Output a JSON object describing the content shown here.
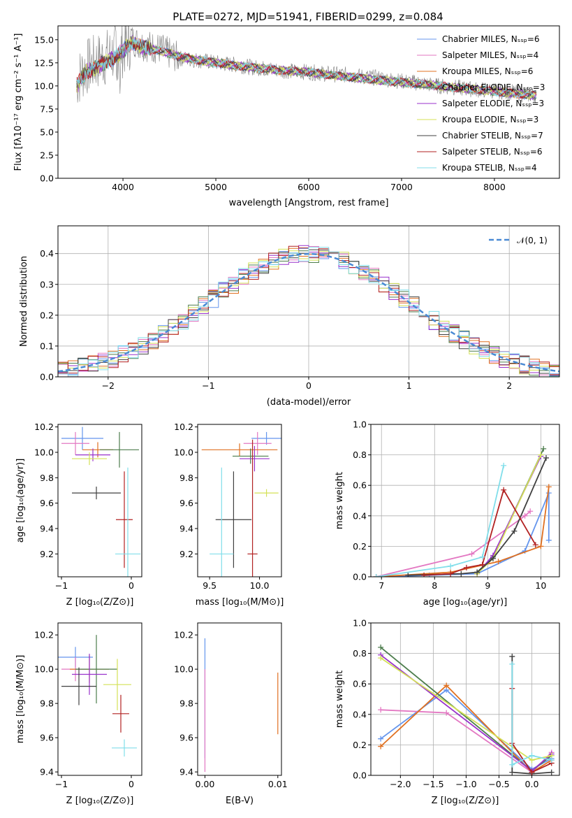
{
  "figure": {
    "title": "PLATE=0272, MJD=51941, FIBERID=0299, z=0.084"
  },
  "chart_data": [
    {
      "id": "spectrum",
      "type": "line",
      "xlabel": "wavelength [Angstrom, rest frame]",
      "ylabel": "Flux [fλ10⁻¹⁷ erg cm⁻² s⁻¹ A⁻¹]",
      "xlim": [
        3300,
        8700
      ],
      "ylim": [
        0,
        16.5
      ],
      "xticks": [
        4000,
        5000,
        6000,
        7000,
        8000
      ],
      "yticks": [
        0.0,
        2.5,
        5.0,
        7.5,
        10.0,
        12.5,
        15.0
      ],
      "legend_position": "top-right",
      "x": [
        3500,
        3600,
        3700,
        3800,
        3900,
        4000,
        4100,
        4200,
        4400,
        4600,
        4800,
        5000,
        5200,
        5400,
        5600,
        5800,
        6000,
        6200,
        6400,
        6600,
        6800,
        7000,
        7200,
        7400,
        7600,
        7800,
        8000,
        8200,
        8400
      ],
      "data_y": [
        10.5,
        12.0,
        12.5,
        13.0,
        13.5,
        14.0,
        15.0,
        14.5,
        14.0,
        13.0,
        12.8,
        12.5,
        12.3,
        12.0,
        11.8,
        11.6,
        11.5,
        11.3,
        11.2,
        11.0,
        10.8,
        10.5,
        10.3,
        10.0,
        9.8,
        9.6,
        9.5,
        9.3,
        9.0
      ],
      "model_y": [
        10.0,
        11.5,
        12.0,
        12.5,
        13.0,
        13.8,
        14.8,
        14.2,
        13.8,
        13.2,
        12.8,
        12.5,
        12.2,
        12.0,
        11.8,
        11.6,
        11.5,
        11.2,
        11.0,
        10.8,
        10.6,
        10.4,
        10.2,
        10.0,
        9.8,
        9.6,
        9.4,
        9.2,
        9.0
      ],
      "series": [
        {
          "name": "Chabrier MILES, N_SSP=6",
          "color": "#6495ED"
        },
        {
          "name": "Salpeter MILES, N_SSP=4",
          "color": "#e377c2"
        },
        {
          "name": "Kroupa MILES, N_SSP=6",
          "color": "#e07020"
        },
        {
          "name": "Chabrier ELODIE, N_SSP=3",
          "color": "#4d7d4d"
        },
        {
          "name": "Salpeter ELODIE, N_SSP=3",
          "color": "#9932CC"
        },
        {
          "name": "Kroupa ELODIE, N_SSP=3",
          "color": "#d4e157"
        },
        {
          "name": "Chabrier STELIB, N_SSP=7",
          "color": "#404040"
        },
        {
          "name": "Salpeter STELIB, N_SSP=6",
          "color": "#b22222"
        },
        {
          "name": "Kroupa STELIB, N_SSP=4",
          "color": "#80deea"
        }
      ]
    },
    {
      "id": "residuals",
      "type": "line",
      "xlabel": "(data-model)/error",
      "ylabel": "Normed distribution",
      "xlim": [
        -2.5,
        2.5
      ],
      "ylim": [
        0,
        0.49
      ],
      "xticks": [
        -2,
        -1,
        0,
        1,
        2
      ],
      "yticks": [
        0.0,
        0.1,
        0.2,
        0.3,
        0.4
      ],
      "grid": true,
      "legend_position": "top-right",
      "legend": "𝒩(0, 1)",
      "gaussian": {
        "mean": 0,
        "sigma": 1
      }
    },
    {
      "id": "age-vs-Z",
      "type": "scatter",
      "xlabel": "Z [log₁₀(Z/Z⊙)]",
      "ylabel": "age  [log₁₀(age/yr)]",
      "xlim": [
        -1.05,
        0.15
      ],
      "ylim": [
        9.02,
        10.22
      ],
      "xticks": [
        -1,
        0
      ],
      "yticks": [
        9.2,
        9.4,
        9.6,
        9.8,
        10.0,
        10.2
      ],
      "points": [
        {
          "x": -0.7,
          "y": 10.11,
          "xerr": 0.3,
          "yerr": 0.09
        },
        {
          "x": -0.8,
          "y": 10.07,
          "xerr": 0.2,
          "yerr": 0.09
        },
        {
          "x": -0.48,
          "y": 10.02,
          "xerr": 0.22,
          "yerr": 0.06
        },
        {
          "x": -0.17,
          "y": 10.02,
          "xerr": 0.28,
          "yerr": 0.14
        },
        {
          "x": -0.55,
          "y": 9.98,
          "xerr": 0.25,
          "yerr": 0.05
        },
        {
          "x": -0.6,
          "y": 9.95,
          "xerr": 0.25,
          "yerr": 0.05
        },
        {
          "x": -0.5,
          "y": 9.68,
          "xerr": 0.35,
          "yerr": 0.05
        },
        {
          "x": -0.1,
          "y": 9.47,
          "xerr": 0.12,
          "yerr": 0.38
        },
        {
          "x": -0.05,
          "y": 9.2,
          "xerr": 0.18,
          "yerr": 0.68
        }
      ]
    },
    {
      "id": "age-vs-mass",
      "type": "scatter",
      "xlabel": "mass [log₁₀(M/M⊙)]",
      "xlim": [
        9.38,
        10.22
      ],
      "ylim": [
        9.02,
        10.22
      ],
      "xticks": [
        9.5,
        10.0
      ],
      "yticks": [
        9.2,
        9.4,
        9.6,
        9.8,
        10.0,
        10.2
      ],
      "points": [
        {
          "x": 10.07,
          "y": 10.11,
          "xerr": 0.15,
          "yerr": 0.05
        },
        {
          "x": 9.98,
          "y": 10.07,
          "xerr": 0.14,
          "yerr": 0.09
        },
        {
          "x": 9.8,
          "y": 10.02,
          "xerr": 0.38,
          "yerr": 0.05
        },
        {
          "x": 9.91,
          "y": 9.97,
          "xerr": 0.18,
          "yerr": 0.06
        },
        {
          "x": 9.95,
          "y": 9.95,
          "xerr": 0.15,
          "yerr": 0.1
        },
        {
          "x": 10.07,
          "y": 9.68,
          "xerr": 0.12,
          "yerr": 0.03
        },
        {
          "x": 9.74,
          "y": 9.47,
          "xerr": 0.18,
          "yerr": 0.38
        },
        {
          "x": 9.93,
          "y": 9.2,
          "xerr": 0.05,
          "yerr": 0.9
        },
        {
          "x": 9.62,
          "y": 9.2,
          "xerr": 0.12,
          "yerr": 0.68
        }
      ]
    },
    {
      "id": "mass-weight-vs-age",
      "type": "line",
      "xlabel": "age  [log₁₀(age/yr)]",
      "ylabel": "mass weight",
      "xlim": [
        6.8,
        10.35
      ],
      "ylim": [
        0,
        1.0
      ],
      "xticks": [
        7,
        8,
        9,
        10
      ],
      "yticks": [
        0.0,
        0.2,
        0.4,
        0.6,
        0.8,
        1.0
      ],
      "grid": true,
      "series": [
        {
          "name": "Chabrier MILES",
          "color": "#6495ED",
          "x": [
            6.9,
            7.9,
            8.8,
            9.7,
            10.15,
            10.15
          ],
          "y": [
            0.0,
            0.01,
            0.02,
            0.17,
            0.55,
            0.24
          ]
        },
        {
          "name": "Salpeter MILES",
          "color": "#e377c2",
          "x": [
            6.9,
            8.7,
            9.7,
            9.8
          ],
          "y": [
            0.0,
            0.15,
            0.4,
            0.43
          ]
        },
        {
          "name": "Kroupa MILES",
          "color": "#e07020",
          "x": [
            6.9,
            8.3,
            9.2,
            10.0,
            10.15
          ],
          "y": [
            0.0,
            0.03,
            0.1,
            0.2,
            0.59
          ]
        },
        {
          "name": "Chabrier ELODIE",
          "color": "#4d7d4d",
          "x": [
            8.8,
            9.1,
            10.05
          ],
          "y": [
            0.03,
            0.13,
            0.84
          ]
        },
        {
          "name": "Salpeter ELODIE",
          "color": "#9932CC",
          "x": [
            8.8,
            9.1,
            10.0
          ],
          "y": [
            0.02,
            0.14,
            0.79
          ]
        },
        {
          "name": "Kroupa ELODIE",
          "color": "#d4e157",
          "x": [
            8.8,
            9.1,
            10.0
          ],
          "y": [
            0.02,
            0.12,
            0.8
          ]
        },
        {
          "name": "Chabrier STELIB",
          "color": "#404040",
          "x": [
            7.5,
            8.5,
            8.8,
            9.1,
            9.5,
            10.1
          ],
          "y": [
            0.01,
            0.02,
            0.03,
            0.12,
            0.3,
            0.78
          ]
        },
        {
          "name": "Salpeter STELIB",
          "color": "#b22222",
          "x": [
            7.8,
            8.3,
            8.6,
            8.9,
            9.3,
            9.9
          ],
          "y": [
            0.01,
            0.02,
            0.06,
            0.08,
            0.57,
            0.21
          ]
        },
        {
          "name": "Kroupa STELIB",
          "color": "#80deea",
          "x": [
            6.9,
            8.3,
            8.9,
            9.3
          ],
          "y": [
            0.0,
            0.07,
            0.13,
            0.73
          ]
        }
      ]
    },
    {
      "id": "mass-vs-Z",
      "type": "scatter",
      "xlabel": "Z [log₁₀(Z/Z⊙)]",
      "ylabel": "mass [log₁₀(M/M⊙)]",
      "xlim": [
        -1.05,
        0.15
      ],
      "ylim": [
        9.38,
        10.27
      ],
      "xticks": [
        -1,
        0
      ],
      "yticks": [
        9.4,
        9.6,
        9.8,
        10.0,
        10.2
      ],
      "points": [
        {
          "x": -0.8,
          "y": 10.07,
          "xerr": 0.25,
          "yerr": 0.06
        },
        {
          "x": -0.8,
          "y": 10.0,
          "xerr": 0.2,
          "yerr": 0.07
        },
        {
          "x": -0.6,
          "y": 10.0,
          "xerr": 0.28,
          "yerr": 0.08
        },
        {
          "x": -0.5,
          "y": 10.0,
          "xerr": 0.3,
          "yerr": 0.2
        },
        {
          "x": -0.6,
          "y": 9.97,
          "xerr": 0.25,
          "yerr": 0.12
        },
        {
          "x": -0.2,
          "y": 9.91,
          "xerr": 0.2,
          "yerr": 0.15
        },
        {
          "x": -0.75,
          "y": 9.9,
          "xerr": 0.25,
          "yerr": 0.11
        },
        {
          "x": -0.15,
          "y": 9.74,
          "xerr": 0.12,
          "yerr": 0.11
        },
        {
          "x": -0.1,
          "y": 9.54,
          "xerr": 0.18,
          "yerr": 0.05
        }
      ]
    },
    {
      "id": "mass-vs-ebv",
      "type": "scatter",
      "xlabel": "E(B-V)",
      "xlim": [
        -0.001,
        0.0105
      ],
      "ylim": [
        9.38,
        10.27
      ],
      "xticks": [
        0.0,
        0.01
      ],
      "yticks": [
        9.4,
        9.6,
        9.8,
        10.0,
        10.2
      ],
      "points": [
        {
          "x": 0.0,
          "y": 9.83,
          "xerr": 0,
          "yerr": 0.35
        },
        {
          "x": 0.0,
          "y": 9.7,
          "xerr": 0,
          "yerr": 0.3
        },
        {
          "x": 0.01,
          "y": 9.8,
          "xerr": 0,
          "yerr": 0.18
        }
      ]
    },
    {
      "id": "mass-weight-vs-Z",
      "type": "line",
      "xlabel": "Z [log₁₀(Z/Z⊙)]",
      "ylabel": "mass weight",
      "xlim": [
        -2.45,
        0.42
      ],
      "ylim": [
        0,
        1.0
      ],
      "xticks": [
        -2.0,
        -1.5,
        -1.0,
        -0.5,
        0.0
      ],
      "yticks": [
        0.0,
        0.2,
        0.4,
        0.6,
        0.8,
        1.0
      ],
      "grid": true,
      "series": [
        {
          "name": "Chabrier MILES",
          "color": "#6495ED",
          "x": [
            -2.3,
            -1.3,
            0.0,
            0.3
          ],
          "y": [
            0.24,
            0.56,
            0.04,
            0.11
          ]
        },
        {
          "name": "Salpeter MILES",
          "color": "#e377c2",
          "x": [
            -2.3,
            -1.3,
            0.0,
            0.3
          ],
          "y": [
            0.43,
            0.41,
            0.02,
            0.15
          ]
        },
        {
          "name": "Kroupa MILES",
          "color": "#e07020",
          "x": [
            -2.3,
            -1.3,
            0.0,
            0.3
          ],
          "y": [
            0.19,
            0.59,
            0.02,
            0.1
          ]
        },
        {
          "name": "Chabrier ELODIE",
          "color": "#4d7d4d",
          "x": [
            -2.3,
            0.0,
            0.3
          ],
          "y": [
            0.84,
            0.03,
            0.13
          ]
        },
        {
          "name": "Salpeter ELODIE",
          "color": "#9932CC",
          "x": [
            -2.3,
            0.0,
            0.3
          ],
          "y": [
            0.79,
            0.03,
            0.14
          ]
        },
        {
          "name": "Kroupa ELODIE",
          "color": "#d4e157",
          "x": [
            -2.3,
            0.0,
            0.3
          ],
          "y": [
            0.77,
            0.1,
            0.13
          ]
        },
        {
          "name": "Chabrier STELIB",
          "color": "#404040",
          "x": [
            -0.3,
            -0.3,
            0.0,
            0.3
          ],
          "y": [
            0.78,
            0.02,
            0.01,
            0.02
          ]
        },
        {
          "name": "Salpeter STELIB",
          "color": "#b22222",
          "x": [
            -0.3,
            -0.3,
            0.0,
            0.3
          ],
          "y": [
            0.57,
            0.21,
            0.02,
            0.08
          ]
        },
        {
          "name": "Kroupa STELIB",
          "color": "#80deea",
          "x": [
            -0.3,
            -0.3,
            0.0,
            0.3
          ],
          "y": [
            0.73,
            0.07,
            0.13,
            0.1
          ]
        }
      ]
    }
  ]
}
